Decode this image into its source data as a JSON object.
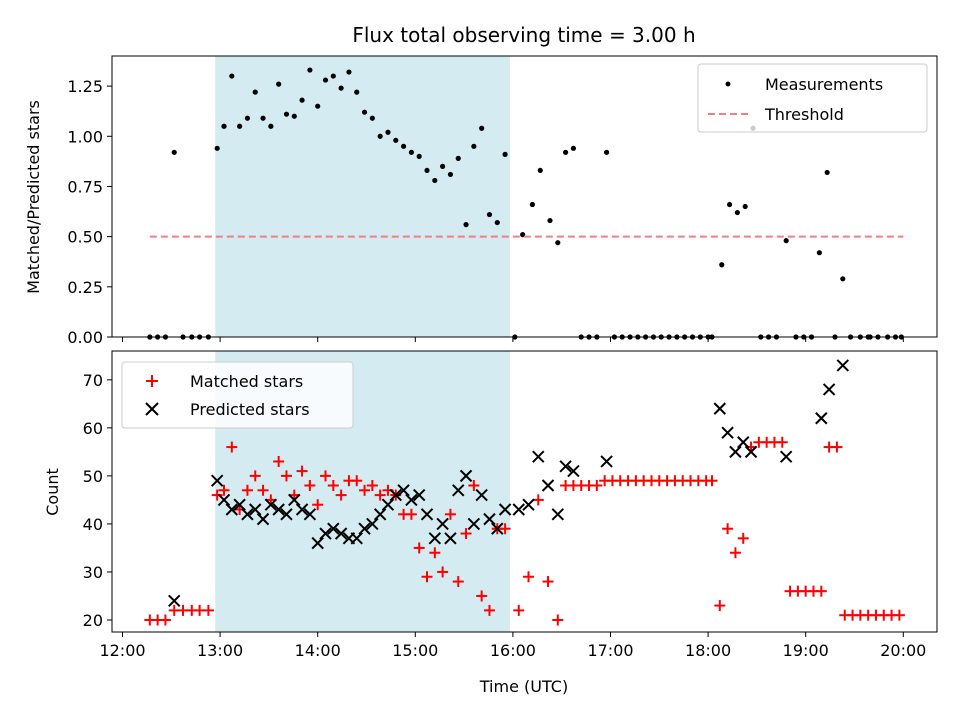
{
  "chart_data": [
    {
      "type": "scatter",
      "title": "Flux total observing time = 3.00 h",
      "xlabel": "",
      "ylabel": "Matched/Predicted stars",
      "xlim": [
        "12:00",
        "20:00"
      ],
      "ylim": [
        0,
        1.4
      ],
      "x_unit": "hours UTC",
      "xticks": [
        "12:00",
        "13:00",
        "14:00",
        "15:00",
        "16:00",
        "17:00",
        "18:00",
        "19:00",
        "20:00"
      ],
      "yticks": [
        "0.00",
        "0.25",
        "0.50",
        "0.75",
        "1.00",
        "1.25"
      ],
      "highlight_span": {
        "from": 12.95,
        "to": 15.97,
        "color": "#d4ebf2"
      },
      "legend": {
        "placement": "upper right",
        "entries": [
          "Measurements",
          "Threshold"
        ]
      },
      "series": [
        {
          "name": "Measurements",
          "marker": "dot",
          "color": "#000000",
          "points": [
            [
              12.28,
              0
            ],
            [
              12.36,
              0
            ],
            [
              12.44,
              0
            ],
            [
              12.53,
              0.92
            ],
            [
              12.62,
              0
            ],
            [
              12.71,
              0
            ],
            [
              12.79,
              0
            ],
            [
              12.88,
              0
            ],
            [
              12.97,
              0.94
            ],
            [
              13.04,
              1.05
            ],
            [
              13.12,
              1.3
            ],
            [
              13.2,
              1.05
            ],
            [
              13.28,
              1.09
            ],
            [
              13.36,
              1.22
            ],
            [
              13.44,
              1.09
            ],
            [
              13.52,
              1.05
            ],
            [
              13.6,
              1.26
            ],
            [
              13.68,
              1.11
            ],
            [
              13.76,
              1.1
            ],
            [
              13.84,
              1.18
            ],
            [
              13.92,
              1.33
            ],
            [
              14.0,
              1.15
            ],
            [
              14.08,
              1.28
            ],
            [
              14.16,
              1.3
            ],
            [
              14.24,
              1.24
            ],
            [
              14.32,
              1.32
            ],
            [
              14.4,
              1.22
            ],
            [
              14.48,
              1.12
            ],
            [
              14.56,
              1.09
            ],
            [
              14.64,
              1.0
            ],
            [
              14.72,
              1.02
            ],
            [
              14.8,
              0.98
            ],
            [
              14.88,
              0.95
            ],
            [
              14.96,
              0.92
            ],
            [
              15.04,
              0.9
            ],
            [
              15.12,
              0.83
            ],
            [
              15.2,
              0.78
            ],
            [
              15.28,
              0.85
            ],
            [
              15.36,
              0.81
            ],
            [
              15.44,
              0.89
            ],
            [
              15.52,
              0.56
            ],
            [
              15.6,
              0.95
            ],
            [
              15.68,
              1.04
            ],
            [
              15.76,
              0.61
            ],
            [
              15.84,
              0.57
            ],
            [
              15.92,
              0.91
            ],
            [
              16.02,
              0
            ],
            [
              16.1,
              0.51
            ],
            [
              16.2,
              0.66
            ],
            [
              16.28,
              0.83
            ],
            [
              16.38,
              0.58
            ],
            [
              16.46,
              0.47
            ],
            [
              16.54,
              0.92
            ],
            [
              16.62,
              0.94
            ],
            [
              16.7,
              0
            ],
            [
              16.78,
              0
            ],
            [
              16.86,
              0
            ],
            [
              16.96,
              0.92
            ],
            [
              17.04,
              0
            ],
            [
              17.12,
              0
            ],
            [
              17.2,
              0
            ],
            [
              17.28,
              0
            ],
            [
              17.36,
              0
            ],
            [
              17.44,
              0
            ],
            [
              17.52,
              0
            ],
            [
              17.6,
              0
            ],
            [
              17.68,
              0
            ],
            [
              17.76,
              0
            ],
            [
              17.84,
              0
            ],
            [
              17.92,
              0
            ],
            [
              18.0,
              0
            ],
            [
              18.04,
              0
            ],
            [
              18.14,
              0.36
            ],
            [
              18.22,
              0.66
            ],
            [
              18.3,
              0.62
            ],
            [
              18.38,
              0.65
            ],
            [
              18.46,
              1.04
            ],
            [
              18.54,
              0
            ],
            [
              18.62,
              0
            ],
            [
              18.7,
              0
            ],
            [
              18.8,
              0.48
            ],
            [
              18.9,
              0
            ],
            [
              18.98,
              0
            ],
            [
              19.06,
              0
            ],
            [
              19.14,
              0.42
            ],
            [
              19.22,
              0.82
            ],
            [
              19.3,
              0
            ],
            [
              19.38,
              0.29
            ],
            [
              19.46,
              0
            ],
            [
              19.56,
              0
            ],
            [
              19.64,
              0
            ],
            [
              19.66,
              0
            ],
            [
              19.74,
              0
            ],
            [
              19.84,
              0
            ],
            [
              19.92,
              0
            ],
            [
              19.98,
              0
            ]
          ]
        },
        {
          "name": "Threshold",
          "marker": "dashed-line",
          "color": "#f08080",
          "points": [
            [
              12.28,
              0.5
            ],
            [
              20.0,
              0.5
            ]
          ]
        }
      ]
    },
    {
      "type": "scatter",
      "title": "",
      "xlabel": "Time (UTC)",
      "ylabel": "Count",
      "xlim": [
        "12:00",
        "20:00"
      ],
      "ylim": [
        17.5,
        76
      ],
      "x_unit": "hours UTC",
      "xticks": [
        "12:00",
        "13:00",
        "14:00",
        "15:00",
        "16:00",
        "17:00",
        "18:00",
        "19:00",
        "20:00"
      ],
      "yticks": [
        "20",
        "30",
        "40",
        "50",
        "60",
        "70"
      ],
      "highlight_span": {
        "from": 12.95,
        "to": 15.97,
        "color": "#d4ebf2"
      },
      "legend": {
        "placement": "upper left",
        "entries": [
          "Matched stars",
          "Predicted stars"
        ]
      },
      "series": [
        {
          "name": "Matched stars",
          "marker": "plus",
          "color": "#ff0000",
          "points": [
            [
              12.28,
              20
            ],
            [
              12.36,
              20
            ],
            [
              12.44,
              20
            ],
            [
              12.53,
              22
            ],
            [
              12.62,
              22
            ],
            [
              12.71,
              22
            ],
            [
              12.79,
              22
            ],
            [
              12.88,
              22
            ],
            [
              12.97,
              46
            ],
            [
              13.04,
              47
            ],
            [
              13.12,
              56
            ],
            [
              13.2,
              43
            ],
            [
              13.28,
              47
            ],
            [
              13.36,
              50
            ],
            [
              13.44,
              47
            ],
            [
              13.52,
              45
            ],
            [
              13.6,
              53
            ],
            [
              13.68,
              50
            ],
            [
              13.76,
              46
            ],
            [
              13.84,
              51
            ],
            [
              13.92,
              48
            ],
            [
              14.0,
              44
            ],
            [
              14.08,
              50
            ],
            [
              14.16,
              48
            ],
            [
              14.24,
              46
            ],
            [
              14.32,
              49
            ],
            [
              14.4,
              49
            ],
            [
              14.48,
              47
            ],
            [
              14.56,
              48
            ],
            [
              14.64,
              46
            ],
            [
              14.72,
              47
            ],
            [
              14.8,
              46
            ],
            [
              14.88,
              42
            ],
            [
              14.96,
              42
            ],
            [
              15.04,
              35
            ],
            [
              15.12,
              29
            ],
            [
              15.2,
              34
            ],
            [
              15.28,
              30
            ],
            [
              15.36,
              42
            ],
            [
              15.44,
              28
            ],
            [
              15.52,
              38
            ],
            [
              15.6,
              48
            ],
            [
              15.68,
              25
            ],
            [
              15.76,
              22
            ],
            [
              15.84,
              39
            ],
            [
              15.92,
              39
            ],
            [
              16.06,
              22
            ],
            [
              16.16,
              29
            ],
            [
              16.26,
              45
            ],
            [
              16.36,
              28
            ],
            [
              16.46,
              20
            ],
            [
              16.54,
              48
            ],
            [
              16.62,
              48
            ],
            [
              16.7,
              48
            ],
            [
              16.78,
              48
            ],
            [
              16.86,
              48
            ],
            [
              16.94,
              49
            ],
            [
              17.02,
              49
            ],
            [
              17.1,
              49
            ],
            [
              17.18,
              49
            ],
            [
              17.26,
              49
            ],
            [
              17.34,
              49
            ],
            [
              17.42,
              49
            ],
            [
              17.5,
              49
            ],
            [
              17.58,
              49
            ],
            [
              17.66,
              49
            ],
            [
              17.74,
              49
            ],
            [
              17.82,
              49
            ],
            [
              17.9,
              49
            ],
            [
              17.98,
              49
            ],
            [
              18.04,
              49
            ],
            [
              18.12,
              23
            ],
            [
              18.2,
              39
            ],
            [
              18.28,
              34
            ],
            [
              18.36,
              37
            ],
            [
              18.44,
              56
            ],
            [
              18.52,
              57
            ],
            [
              18.6,
              57
            ],
            [
              18.68,
              57
            ],
            [
              18.76,
              57
            ],
            [
              18.84,
              26
            ],
            [
              18.92,
              26
            ],
            [
              19.0,
              26
            ],
            [
              19.08,
              26
            ],
            [
              19.16,
              26
            ],
            [
              19.24,
              56
            ],
            [
              19.32,
              56
            ],
            [
              19.4,
              21
            ],
            [
              19.48,
              21
            ],
            [
              19.56,
              21
            ],
            [
              19.64,
              21
            ],
            [
              19.72,
              21
            ],
            [
              19.8,
              21
            ],
            [
              19.88,
              21
            ],
            [
              19.96,
              21
            ]
          ]
        },
        {
          "name": "Predicted stars",
          "marker": "x",
          "color": "#000000",
          "points": [
            [
              12.53,
              24
            ],
            [
              12.97,
              49
            ],
            [
              13.04,
              45
            ],
            [
              13.12,
              43
            ],
            [
              13.2,
              44
            ],
            [
              13.28,
              42
            ],
            [
              13.36,
              43
            ],
            [
              13.44,
              41
            ],
            [
              13.52,
              44
            ],
            [
              13.6,
              43
            ],
            [
              13.68,
              42
            ],
            [
              13.76,
              45
            ],
            [
              13.84,
              43
            ],
            [
              13.92,
              42
            ],
            [
              14.0,
              36
            ],
            [
              14.08,
              38
            ],
            [
              14.16,
              39
            ],
            [
              14.24,
              38
            ],
            [
              14.32,
              37
            ],
            [
              14.4,
              37
            ],
            [
              14.48,
              39
            ],
            [
              14.56,
              40
            ],
            [
              14.64,
              42
            ],
            [
              14.72,
              44
            ],
            [
              14.8,
              46
            ],
            [
              14.88,
              47
            ],
            [
              14.96,
              45
            ],
            [
              15.04,
              46
            ],
            [
              15.12,
              42
            ],
            [
              15.2,
              37
            ],
            [
              15.28,
              40
            ],
            [
              15.36,
              37
            ],
            [
              15.44,
              47
            ],
            [
              15.52,
              50
            ],
            [
              15.6,
              40
            ],
            [
              15.68,
              46
            ],
            [
              15.76,
              41
            ],
            [
              15.84,
              39
            ],
            [
              15.92,
              43
            ],
            [
              16.06,
              43
            ],
            [
              16.16,
              44
            ],
            [
              16.26,
              54
            ],
            [
              16.36,
              48
            ],
            [
              16.46,
              42
            ],
            [
              16.54,
              52
            ],
            [
              16.62,
              51
            ],
            [
              16.96,
              53
            ],
            [
              18.12,
              64
            ],
            [
              18.2,
              59
            ],
            [
              18.28,
              55
            ],
            [
              18.36,
              57
            ],
            [
              18.44,
              55
            ],
            [
              18.8,
              54
            ],
            [
              19.16,
              62
            ],
            [
              19.24,
              68
            ],
            [
              19.38,
              73
            ]
          ]
        }
      ]
    }
  ]
}
